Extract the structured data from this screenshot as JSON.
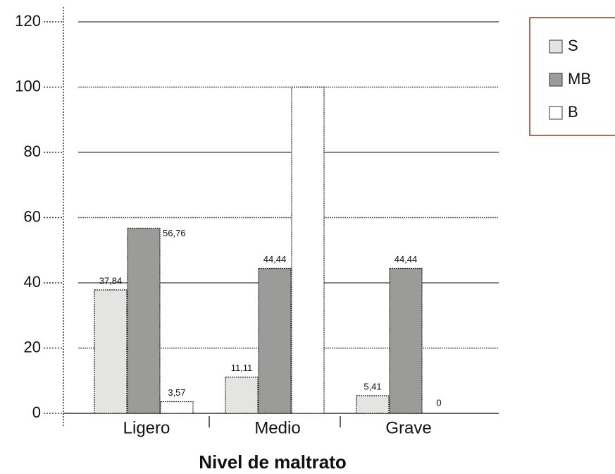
{
  "chart_data": {
    "type": "bar",
    "xlabel": "Nivel de maltrato",
    "categories": [
      "Ligero",
      "Medio",
      "Grave"
    ],
    "series": [
      {
        "name": "S",
        "color": "#e4e4e2",
        "values": [
          37.84,
          11.11,
          5.41
        ],
        "value_labels": [
          "37,84",
          "11,11",
          "5,41"
        ]
      },
      {
        "name": "MB",
        "color": "#9b9b99",
        "values": [
          56.76,
          44.44,
          44.44
        ],
        "value_labels": [
          "56,76",
          "44,44",
          "44,44"
        ]
      },
      {
        "name": "B",
        "color": "#ffffff",
        "values": [
          3.57,
          100,
          0
        ],
        "value_labels": [
          "3,57",
          null,
          "0"
        ]
      }
    ],
    "ylim": [
      0,
      120
    ],
    "yticks": [
      0,
      20,
      40,
      60,
      80,
      100,
      120
    ],
    "grid": true,
    "legend": "upper right"
  }
}
